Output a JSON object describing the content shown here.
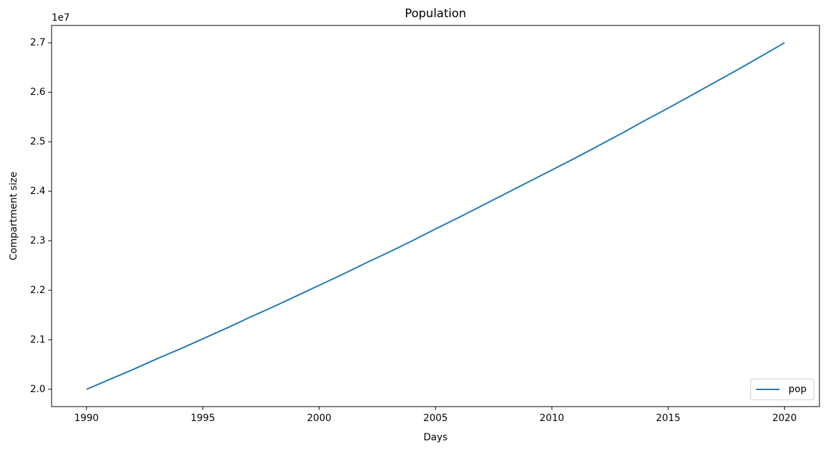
{
  "chart_data": {
    "type": "line",
    "title": "Population",
    "x_label": "Days",
    "y_label": "Compartment size",
    "y_offset_text": "1e7",
    "x": [
      1990,
      1991,
      1992,
      1993,
      1994,
      1995,
      1996,
      1997,
      1998,
      1999,
      2000,
      2001,
      2002,
      2003,
      2004,
      2005,
      2006,
      2007,
      2008,
      2009,
      2010,
      2011,
      2012,
      2013,
      2014,
      2015,
      2016,
      2017,
      2018,
      2019,
      2020
    ],
    "series": [
      {
        "name": "pop",
        "color": "#1f77b4",
        "values": [
          20000000,
          20200000,
          20400000,
          20610000,
          20810000,
          21020000,
          21230000,
          21450000,
          21660000,
          21880000,
          22100000,
          22320000,
          22550000,
          22770000,
          23000000,
          23240000,
          23470000,
          23710000,
          23950000,
          24190000,
          24430000,
          24670000,
          24920000,
          25170000,
          25430000,
          25680000,
          25940000,
          26200000,
          26460000,
          26730000,
          27000000
        ]
      }
    ],
    "xlim": [
      1988.5,
      2021.5
    ],
    "xticks": [
      1990,
      1995,
      2000,
      2005,
      2010,
      2015,
      2020
    ],
    "ylim": [
      19650000,
      27350000
    ],
    "yticks": [
      {
        "value": 20000000,
        "label": "2.0"
      },
      {
        "value": 21000000,
        "label": "2.1"
      },
      {
        "value": 22000000,
        "label": "2.2"
      },
      {
        "value": 23000000,
        "label": "2.3"
      },
      {
        "value": 24000000,
        "label": "2.4"
      },
      {
        "value": 25000000,
        "label": "2.5"
      },
      {
        "value": 26000000,
        "label": "2.6"
      },
      {
        "value": 27000000,
        "label": "2.7"
      }
    ],
    "grid": false,
    "legend": "lower right"
  }
}
